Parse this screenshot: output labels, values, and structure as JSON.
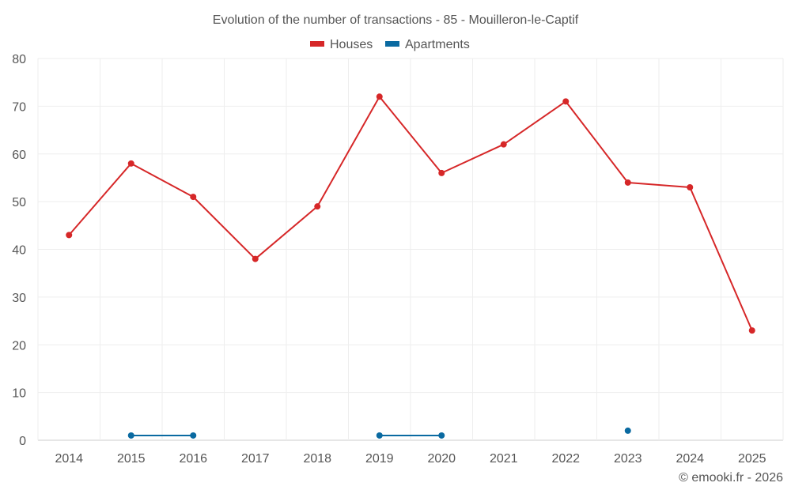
{
  "chart_data": {
    "type": "line",
    "title": "Evolution of the number of transactions - 85 - Mouilleron-le-Captif",
    "xlabel": "",
    "ylabel": "",
    "categories": [
      "2014",
      "2015",
      "2016",
      "2017",
      "2018",
      "2019",
      "2020",
      "2021",
      "2022",
      "2023",
      "2024",
      "2025"
    ],
    "ylim": [
      0,
      80
    ],
    "yticks": [
      0,
      10,
      20,
      30,
      40,
      50,
      60,
      70,
      80
    ],
    "grid": true,
    "legend_position": "top-center",
    "series": [
      {
        "name": "Houses",
        "color": "#d62728",
        "values": [
          43,
          58,
          51,
          38,
          49,
          72,
          56,
          62,
          71,
          54,
          53,
          23
        ]
      },
      {
        "name": "Apartments",
        "color": "#0a6aa1",
        "values": [
          null,
          1,
          1,
          null,
          null,
          1,
          1,
          null,
          null,
          2,
          null,
          null
        ]
      }
    ]
  },
  "credit": "© emooki.fr - 2026"
}
